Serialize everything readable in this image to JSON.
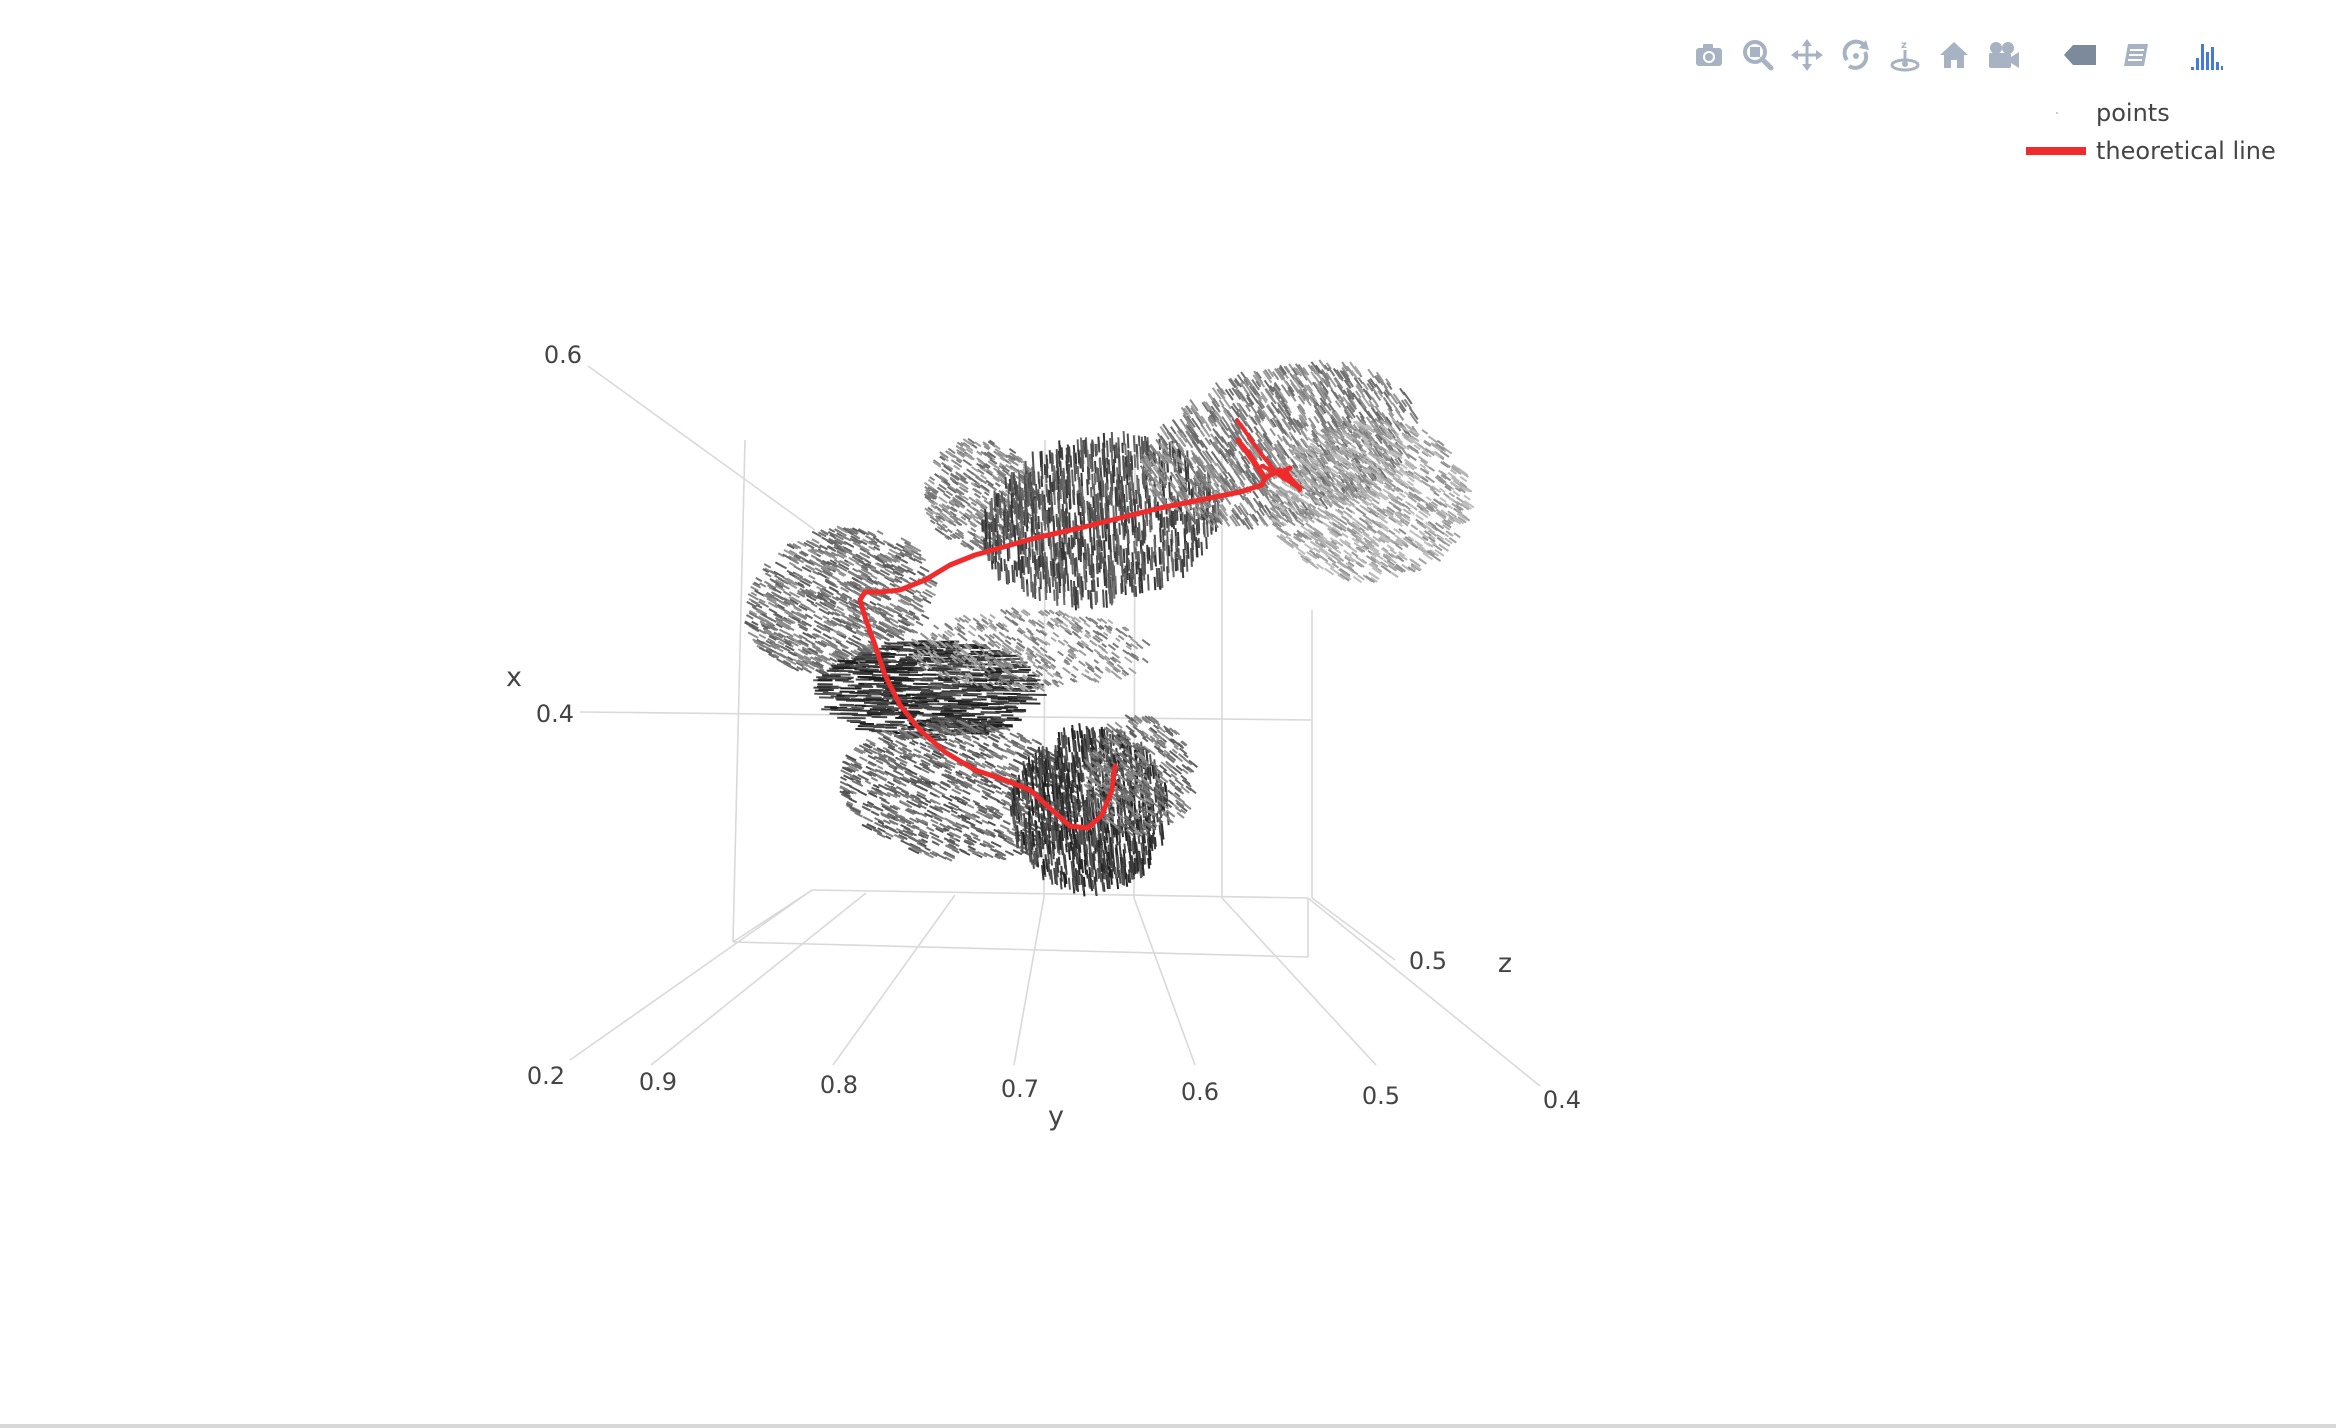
{
  "modebar": {
    "buttons": [
      {
        "name": "camera-icon",
        "title": "Download plot as a png"
      },
      {
        "name": "zoom-icon",
        "title": "Zoom"
      },
      {
        "name": "pan-icon",
        "title": "Pan"
      },
      {
        "name": "orbit-rotation-icon",
        "title": "Orbital rotation"
      },
      {
        "name": "turntable-rotation-icon",
        "title": "Turntable rotation"
      },
      {
        "name": "home-icon",
        "title": "Reset camera to default"
      },
      {
        "name": "camera-last-save-icon",
        "title": "Reset camera to last save"
      },
      {
        "name": "hover-closest-icon",
        "title": "Toggle show closest data on hover"
      },
      {
        "name": "spike-lines-icon",
        "title": "Toggle spike lines"
      },
      {
        "name": "plotly-logo-icon",
        "title": "Produced with Plotly"
      }
    ],
    "colors": {
      "icon": "#a7b3c2",
      "logo": "#447adb",
      "active": "#7d8a9c"
    }
  },
  "legend": {
    "items": [
      {
        "label": "points",
        "color": "#444444",
        "symbol": "point"
      },
      {
        "label": "theoretical line",
        "color": "#ef2b2b",
        "symbol": "line"
      }
    ]
  },
  "chart_data": {
    "type": "scatter3d",
    "axes": {
      "x": {
        "title": "x",
        "ticks": [
          "0.6",
          "0.4",
          "0.2"
        ]
      },
      "y": {
        "title": "y",
        "ticks": [
          "0.9",
          "0.8",
          "0.7",
          "0.6",
          "0.5",
          "0.4"
        ]
      },
      "z": {
        "title": "z",
        "ticks": [
          "0.5"
        ]
      }
    },
    "series": [
      {
        "name": "points",
        "mode": "markers",
        "color": "#333333",
        "description_cloud": true
      },
      {
        "name": "theoretical line",
        "mode": "lines",
        "color": "#ef2b2b",
        "points": [
          {
            "y": 0.8,
            "x": 0.455,
            "z": 0.5
          },
          {
            "y": 0.79,
            "x": 0.41,
            "z": 0.5
          },
          {
            "y": 0.77,
            "x": 0.36,
            "z": 0.5
          },
          {
            "y": 0.74,
            "x": 0.33,
            "z": 0.5
          },
          {
            "y": 0.7,
            "x": 0.31,
            "z": 0.5
          },
          {
            "y": 0.665,
            "x": 0.325,
            "z": 0.5
          },
          {
            "y": 0.645,
            "x": 0.34,
            "z": 0.5
          },
          {
            "y": 0.76,
            "x": 0.47,
            "z": 0.5
          },
          {
            "y": 0.7,
            "x": 0.515,
            "z": 0.5
          },
          {
            "y": 0.6,
            "x": 0.535,
            "z": 0.5
          },
          {
            "y": 0.52,
            "x": 0.56,
            "z": 0.5
          },
          {
            "y": 0.48,
            "x": 0.575,
            "z": 0.5
          }
        ]
      }
    ],
    "grid": true,
    "legend_position": "top-right"
  }
}
